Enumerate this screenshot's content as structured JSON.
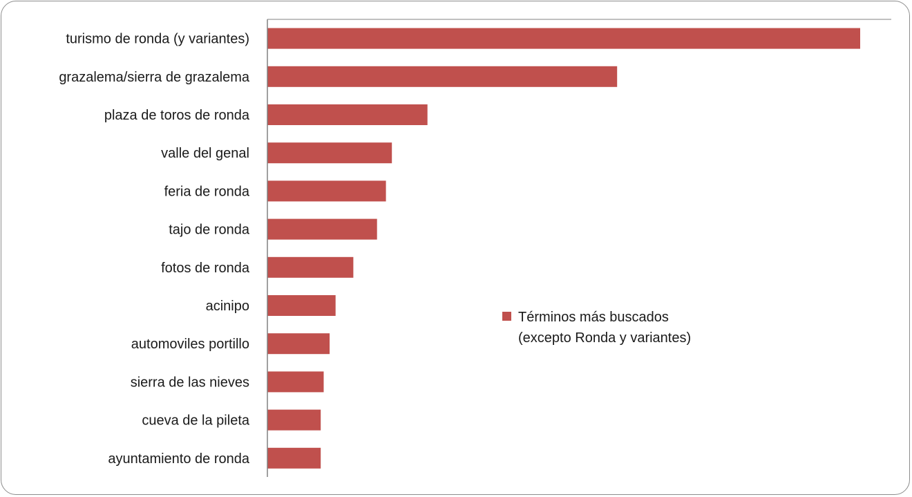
{
  "chart_data": {
    "type": "bar",
    "orientation": "horizontal",
    "categories": [
      "turismo de ronda (y variantes)",
      "grazalema/sierra de grazalema",
      "plaza de toros de ronda",
      "valle del genal",
      "feria de ronda",
      "tajo de ronda",
      "fotos de ronda",
      "acinipo",
      "automoviles portillo",
      "sierra de las nieves",
      "cueva de la pileta",
      "ayuntamiento de ronda"
    ],
    "series": [
      {
        "name_lines": [
          "Términos más buscados",
          "(excepto Ronda y variantes)"
        ],
        "color": "#c0504d",
        "values": [
          100,
          59,
          27,
          21,
          20,
          18.5,
          14.5,
          11.5,
          10.5,
          9.5,
          9,
          9
        ]
      }
    ],
    "xlim": [
      0,
      105
    ],
    "grid": false,
    "legend_position": "center-right",
    "title": "",
    "xlabel": "",
    "ylabel": ""
  }
}
